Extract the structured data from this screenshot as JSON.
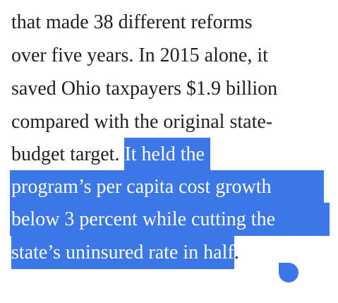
{
  "article": {
    "lines": {
      "l1": "that made 38 different reforms",
      "l2": "over five years. In 2015 alone, it",
      "l3": "saved Ohio taxpayers $1.9 billion",
      "l4": "compared with the original state-",
      "l5_before": "budget target. ",
      "l5_selected": "It held the",
      "l6_selected": "program’s per capita cost growth",
      "l7_selected": "below 3 percent while cutting the",
      "l8_selected": "state’s uninsured rate in half",
      "l8_after": "."
    }
  },
  "selection": {
    "highlight_color": "#3b77e6",
    "text_color": "#ffffff"
  }
}
